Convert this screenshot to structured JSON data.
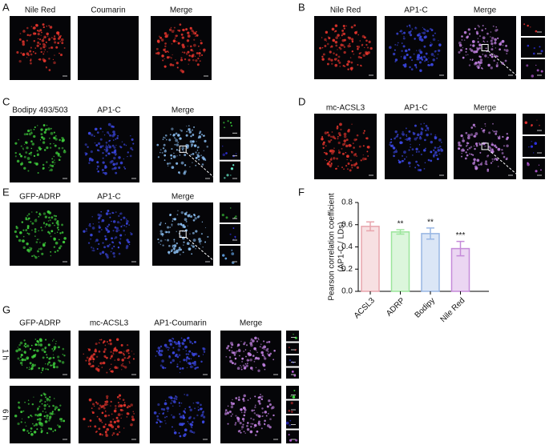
{
  "panels": {
    "A": {
      "label": "A",
      "channels": [
        "Nile Red",
        "Coumarin",
        "Merge"
      ]
    },
    "B": {
      "label": "B",
      "channels": [
        "Nile Red",
        "AP1-C",
        "Merge"
      ]
    },
    "C": {
      "label": "C",
      "channels": [
        "Bodipy 493/503",
        "AP1-C",
        "Merge"
      ]
    },
    "D": {
      "label": "D",
      "channels": [
        "mc-ACSL3",
        "AP1-C",
        "Merge"
      ]
    },
    "E": {
      "label": "E",
      "channels": [
        "GFP-ADRP",
        "AP1-C",
        "Merge"
      ]
    },
    "F": {
      "label": "F"
    },
    "G": {
      "label": "G",
      "channels": [
        "GFP-ADRP",
        "mc-ACSL3",
        "AP1-Coumarin",
        "Merge"
      ],
      "rows": [
        "1 h",
        "6 h"
      ]
    }
  },
  "chart_data": {
    "type": "bar",
    "ylabel": [
      "Pearson correlation coefficient",
      "(AP1-C / LDs)"
    ],
    "categories": [
      "ACSL3",
      "ADRP",
      "Bodipy",
      "Nile Red"
    ],
    "values": [
      0.585,
      0.535,
      0.52,
      0.385
    ],
    "errors": [
      0.04,
      0.02,
      0.05,
      0.065
    ],
    "annotations": [
      null,
      "**",
      "**",
      "***"
    ],
    "colors": [
      "#e8a5ad",
      "#9be59b",
      "#98b6e4",
      "#c58ad9"
    ],
    "ylim": [
      0,
      0.8
    ],
    "yticks": [
      {
        "value": 0,
        "label": "0.0"
      },
      0.2,
      0.4,
      0.6,
      0.8
    ]
  }
}
